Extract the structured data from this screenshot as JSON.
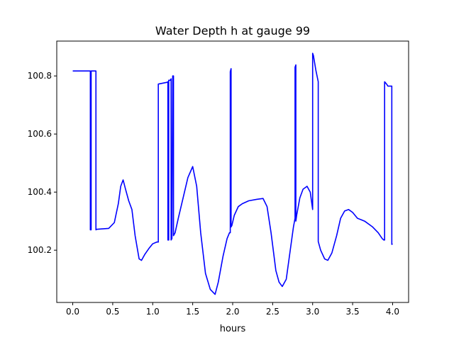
{
  "chart_data": {
    "type": "line",
    "title": "Water Depth h at gauge 99",
    "xlabel": "hours",
    "ylabel": "",
    "xlim": [
      -0.2,
      4.2
    ],
    "ylim": [
      100.02,
      100.92
    ],
    "grid": false,
    "x_ticks": [
      0.0,
      0.5,
      1.0,
      1.5,
      2.0,
      2.5,
      3.0,
      3.5,
      4.0
    ],
    "x_tick_labels": [
      "0.0",
      "0.5",
      "1.0",
      "1.5",
      "2.0",
      "2.5",
      "3.0",
      "3.5",
      "4.0"
    ],
    "y_ticks": [
      100.2,
      100.4,
      100.6,
      100.8
    ],
    "y_tick_labels": [
      "100.2",
      "100.4",
      "100.6",
      "100.8"
    ],
    "series": [
      {
        "color": "#0000ff",
        "x": [
          0.0,
          0.22,
          0.22,
          0.23,
          0.23,
          0.29,
          0.29,
          0.3,
          0.45,
          0.52,
          0.57,
          0.6,
          0.63,
          0.66,
          0.7,
          0.74,
          0.78,
          0.83,
          0.86,
          0.9,
          0.95,
          1.0,
          1.05,
          1.07,
          1.07,
          1.18,
          1.19,
          1.19,
          1.2,
          1.2,
          1.22,
          1.23,
          1.23,
          1.24,
          1.25,
          1.26,
          1.26,
          1.28,
          1.32,
          1.38,
          1.44,
          1.5,
          1.55,
          1.6,
          1.66,
          1.72,
          1.78,
          1.82,
          1.88,
          1.93,
          1.96,
          1.97,
          1.97,
          1.98,
          1.98,
          1.99,
          2.02,
          2.07,
          2.12,
          2.2,
          2.3,
          2.38,
          2.43,
          2.48,
          2.54,
          2.58,
          2.62,
          2.67,
          2.72,
          2.76,
          2.78,
          2.78,
          2.79,
          2.79,
          2.8,
          2.84,
          2.88,
          2.93,
          2.97,
          3.0,
          3.0,
          3.01,
          3.04,
          3.07,
          3.07,
          3.1,
          3.15,
          3.19,
          3.24,
          3.3,
          3.35,
          3.4,
          3.45,
          3.5,
          3.56,
          3.65,
          3.75,
          3.82,
          3.87,
          3.89,
          3.9,
          3.9,
          3.93,
          3.94,
          3.99,
          3.99,
          4.0
        ],
        "values": [
          100.817,
          100.817,
          100.27,
          100.27,
          100.817,
          100.817,
          100.27,
          100.272,
          100.275,
          100.295,
          100.36,
          100.42,
          100.442,
          100.41,
          100.37,
          100.34,
          100.25,
          100.17,
          100.165,
          100.185,
          100.205,
          100.222,
          100.228,
          100.228,
          100.772,
          100.778,
          100.78,
          100.235,
          100.235,
          100.785,
          100.785,
          100.79,
          100.235,
          100.24,
          100.8,
          100.8,
          100.25,
          100.26,
          100.31,
          100.38,
          100.45,
          100.488,
          100.42,
          100.26,
          100.12,
          100.065,
          100.048,
          100.09,
          100.18,
          100.24,
          100.26,
          100.26,
          100.815,
          100.825,
          100.28,
          100.285,
          100.32,
          100.35,
          100.36,
          100.37,
          100.375,
          100.378,
          100.35,
          100.26,
          100.13,
          100.09,
          100.075,
          100.1,
          100.2,
          100.28,
          100.31,
          100.83,
          100.838,
          100.3,
          100.32,
          100.38,
          100.41,
          100.42,
          100.4,
          100.34,
          100.878,
          100.87,
          100.82,
          100.78,
          100.23,
          100.2,
          100.17,
          100.165,
          100.19,
          100.25,
          100.31,
          100.335,
          100.34,
          100.33,
          100.31,
          100.3,
          100.28,
          100.26,
          100.24,
          100.235,
          100.235,
          100.78,
          100.77,
          100.765,
          100.765,
          100.22,
          100.222
        ]
      }
    ]
  }
}
